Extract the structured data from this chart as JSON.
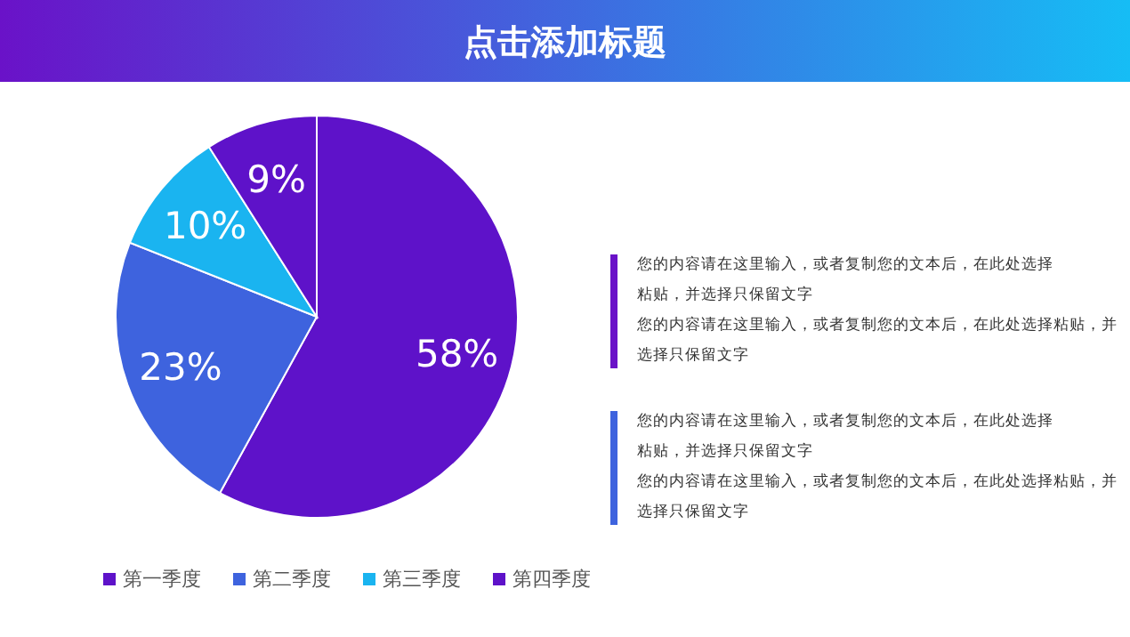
{
  "chart_data": {
    "type": "pie",
    "title": "点击添加标题",
    "categories": [
      "第一季度",
      "第二季度",
      "第三季度",
      "第四季度"
    ],
    "values": [
      58,
      23,
      10,
      9
    ],
    "colors": [
      "#5e12c9",
      "#3e63de",
      "#1ab4f0",
      "#5e12c9"
    ],
    "value_labels": [
      "58%",
      "23%",
      "10%",
      "9%"
    ],
    "legend": "bottom",
    "annotations": [
      "您的内容请在这里输入，或者复制您的文本后，在此处选择粘贴，并选择只保留文字",
      "您的内容请在这里输入，或者复制您的文本后，在此处选择粘贴，并选择只保留文字",
      "您的内容请在这里输入，或者复制您的文本后，在此处选择粘贴，并选择只保留文字",
      "您的内容请在这里输入，或者复制您的文本后，在此处选择粘贴，并选择只保留文字"
    ]
  }
}
